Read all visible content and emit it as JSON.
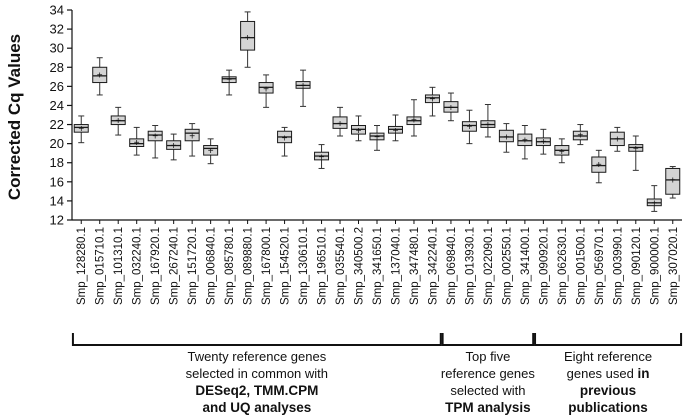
{
  "chart_data": {
    "type": "box",
    "ylabel": "Corrected Cq Values",
    "ylim": [
      12,
      34
    ],
    "yticks": [
      12,
      14,
      16,
      18,
      20,
      22,
      24,
      26,
      28,
      30,
      32,
      34
    ],
    "categories": [
      "Smp_128280.1",
      "Smp_015710.1",
      "Smp_101310.1",
      "Smp_032240.1",
      "Smp_167920.1",
      "Smp_267240.1",
      "Smp_151720.1",
      "Smp_006840.1",
      "Smp_085780.1",
      "Smp_089880.1",
      "Smp_167800.1",
      "Smp_154520.1",
      "Smp_130610.1",
      "Smp_196510.1",
      "Smp_035540.1",
      "Smp_340500.2",
      "Smp_341650.1",
      "Smp_137040.1",
      "Smp_347480.1",
      "Smp_342240.1",
      "Smp_069840.1",
      "Smp_013930.1",
      "Smp_022090.1",
      "Smp_002550.1",
      "Smp_341400.1",
      "Smp_090920.1",
      "Smp_062630.1",
      "Smp_001500.1",
      "Smp_056970.1",
      "Smp_003990.1",
      "Smp_090120.1",
      "Smp_900000.1",
      "Smp_307020.1"
    ],
    "boxes": [
      {
        "min": 20.1,
        "q1": 21.2,
        "median": 21.7,
        "q3": 22.0,
        "max": 22.9,
        "mean": 21.6
      },
      {
        "min": 25.1,
        "q1": 26.4,
        "median": 27.1,
        "q3": 28.0,
        "max": 29.0,
        "mean": 27.2
      },
      {
        "min": 20.9,
        "q1": 22.0,
        "median": 22.4,
        "q3": 22.9,
        "max": 23.8,
        "mean": 22.4
      },
      {
        "min": 18.8,
        "q1": 19.7,
        "median": 20.0,
        "q3": 20.5,
        "max": 21.7,
        "mean": 20.1
      },
      {
        "min": 18.5,
        "q1": 20.3,
        "median": 20.9,
        "q3": 21.3,
        "max": 21.9,
        "mean": 20.8
      },
      {
        "min": 18.3,
        "q1": 19.4,
        "median": 19.8,
        "q3": 20.3,
        "max": 21.0,
        "mean": 19.8
      },
      {
        "min": 18.7,
        "q1": 20.3,
        "median": 21.1,
        "q3": 21.5,
        "max": 22.1,
        "mean": 20.8
      },
      {
        "min": 17.9,
        "q1": 18.8,
        "median": 19.5,
        "q3": 19.8,
        "max": 20.5,
        "mean": 19.3
      },
      {
        "min": 25.1,
        "q1": 26.4,
        "median": 26.8,
        "q3": 27.0,
        "max": 27.7,
        "mean": 26.7
      },
      {
        "min": 28.0,
        "q1": 29.8,
        "median": 31.1,
        "q3": 32.8,
        "max": 33.8,
        "mean": 31.1
      },
      {
        "min": 23.8,
        "q1": 25.3,
        "median": 25.9,
        "q3": 26.4,
        "max": 27.2,
        "mean": 25.7
      },
      {
        "min": 18.7,
        "q1": 20.1,
        "median": 20.7,
        "q3": 21.3,
        "max": 21.7,
        "mean": 20.6
      },
      {
        "min": 23.9,
        "q1": 25.8,
        "median": 26.1,
        "q3": 26.5,
        "max": 27.7,
        "mean": 26.1
      },
      {
        "min": 17.4,
        "q1": 18.3,
        "median": 18.7,
        "q3": 19.1,
        "max": 19.9,
        "mean": 18.6
      },
      {
        "min": 20.8,
        "q1": 21.6,
        "median": 22.1,
        "q3": 22.8,
        "max": 23.8,
        "mean": 22.1
      },
      {
        "min": 20.3,
        "q1": 21.0,
        "median": 21.5,
        "q3": 21.9,
        "max": 22.9,
        "mean": 21.4
      },
      {
        "min": 19.3,
        "q1": 20.4,
        "median": 20.8,
        "q3": 21.1,
        "max": 21.9,
        "mean": 20.7
      },
      {
        "min": 20.3,
        "q1": 21.1,
        "median": 21.5,
        "q3": 21.8,
        "max": 23.0,
        "mean": 21.4
      },
      {
        "min": 20.8,
        "q1": 22.0,
        "median": 22.4,
        "q3": 22.8,
        "max": 24.6,
        "mean": 22.5
      },
      {
        "min": 22.9,
        "q1": 24.3,
        "median": 24.8,
        "q3": 25.1,
        "max": 25.9,
        "mean": 24.7
      },
      {
        "min": 22.4,
        "q1": 23.3,
        "median": 23.8,
        "q3": 24.4,
        "max": 25.3,
        "mean": 23.8
      },
      {
        "min": 20.0,
        "q1": 21.3,
        "median": 21.9,
        "q3": 22.3,
        "max": 23.5,
        "mean": 21.8
      },
      {
        "min": 20.7,
        "q1": 21.7,
        "median": 22.0,
        "q3": 22.4,
        "max": 24.1,
        "mean": 22.0
      },
      {
        "min": 19.1,
        "q1": 20.2,
        "median": 20.7,
        "q3": 21.4,
        "max": 22.1,
        "mean": 20.7
      },
      {
        "min": 18.4,
        "q1": 19.8,
        "median": 20.3,
        "q3": 21.0,
        "max": 21.9,
        "mean": 20.4
      },
      {
        "min": 18.9,
        "q1": 19.8,
        "median": 20.2,
        "q3": 20.6,
        "max": 21.5,
        "mean": 20.2
      },
      {
        "min": 18.0,
        "q1": 18.8,
        "median": 19.3,
        "q3": 19.8,
        "max": 20.5,
        "mean": 19.2
      },
      {
        "min": 19.9,
        "q1": 20.4,
        "median": 20.8,
        "q3": 21.3,
        "max": 22.0,
        "mean": 20.9
      },
      {
        "min": 15.9,
        "q1": 17.0,
        "median": 17.7,
        "q3": 18.6,
        "max": 19.3,
        "mean": 17.8
      },
      {
        "min": 19.2,
        "q1": 19.8,
        "median": 20.5,
        "q3": 21.2,
        "max": 21.7,
        "mean": 20.5
      },
      {
        "min": 17.2,
        "q1": 19.2,
        "median": 19.6,
        "q3": 19.9,
        "max": 20.8,
        "mean": 19.5
      },
      {
        "min": 12.9,
        "q1": 13.5,
        "median": 13.8,
        "q3": 14.2,
        "max": 15.6,
        "mean": 13.8
      },
      {
        "min": 14.3,
        "q1": 14.7,
        "median": 16.2,
        "q3": 17.4,
        "max": 17.6,
        "mean": 16.2
      }
    ],
    "groups": [
      {
        "start": 0,
        "end": 19,
        "lines": [
          [
            {
              "text": "Twenty reference genes",
              "bold": false
            }
          ],
          [
            {
              "text": "selected in common with",
              "bold": false
            }
          ],
          [
            {
              "text": "DESeq2, TMM.CPM",
              "bold": true
            }
          ],
          [
            {
              "text": "and UQ analyses",
              "bold": true
            }
          ]
        ]
      },
      {
        "start": 20,
        "end": 24,
        "lines": [
          [
            {
              "text": "Top five",
              "bold": false
            }
          ],
          [
            {
              "text": "reference genes",
              "bold": false
            }
          ],
          [
            {
              "text": "selected with",
              "bold": false
            }
          ],
          [
            {
              "text": "TPM analysis",
              "bold": true
            }
          ]
        ]
      },
      {
        "start": 25,
        "end": 32,
        "lines": [
          [
            {
              "text": "Eight reference",
              "bold": false
            }
          ],
          [
            {
              "text": "genes used ",
              "bold": false
            },
            {
              "text": "in",
              "bold": true
            }
          ],
          [
            {
              "text": "previous",
              "bold": true
            }
          ],
          [
            {
              "text": "publications",
              "bold": true
            }
          ]
        ]
      }
    ],
    "colors": {
      "box_fill": "#d4d4d4",
      "stroke": "#1a1a1a",
      "whisker": "#333333"
    }
  }
}
